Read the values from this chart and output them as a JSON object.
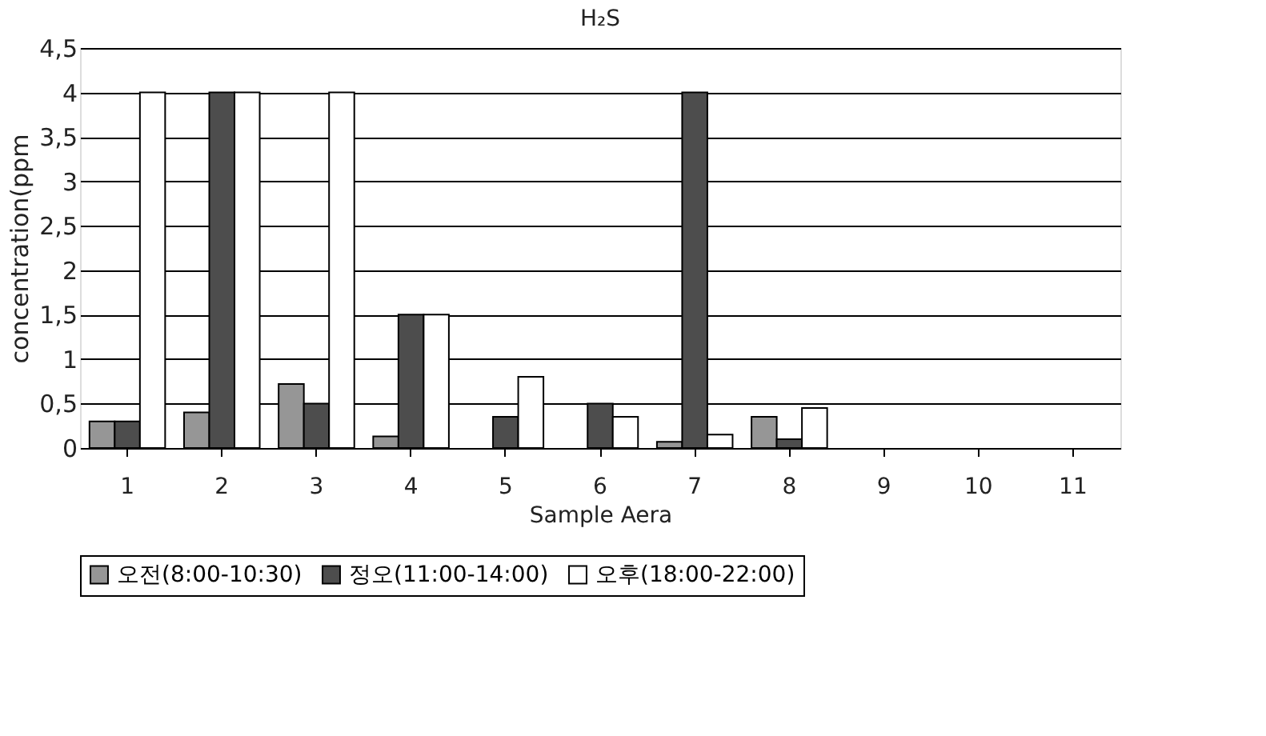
{
  "chart_data": {
    "type": "bar",
    "title": "H₂S",
    "xlabel": "Sample Aera",
    "ylabel": "concentration(ppm",
    "categories": [
      "1",
      "2",
      "3",
      "4",
      "5",
      "6",
      "7",
      "8",
      "9",
      "10",
      "11"
    ],
    "series": [
      {
        "name": "오전(8:00-10:30)",
        "color": "#969696",
        "values": [
          0.3,
          0.4,
          0.72,
          0.13,
          null,
          null,
          0.07,
          0.35,
          null,
          null,
          null
        ]
      },
      {
        "name": "정오(11:00-14:00)",
        "color": "#4d4d4d",
        "values": [
          0.3,
          4,
          0.5,
          1.5,
          0.35,
          0.5,
          4,
          0.1,
          null,
          null,
          null
        ]
      },
      {
        "name": "오후(18:00-22:00)",
        "color": "#ffffff",
        "values": [
          4,
          4,
          4,
          1.5,
          0.8,
          0.35,
          0.15,
          0.45,
          null,
          null,
          null
        ]
      }
    ],
    "ylim": [
      0,
      4.5
    ],
    "yticks": [
      0,
      {
        "value": 0.5,
        "label": "0,5"
      },
      1,
      {
        "value": 1.5,
        "label": "1,5"
      },
      2,
      {
        "value": 2.5,
        "label": "2,5"
      },
      3,
      {
        "value": 3.5,
        "label": "3,5"
      },
      4,
      {
        "value": 4.5,
        "label": "4,5"
      }
    ],
    "grid": "y",
    "legend": "bottom"
  }
}
